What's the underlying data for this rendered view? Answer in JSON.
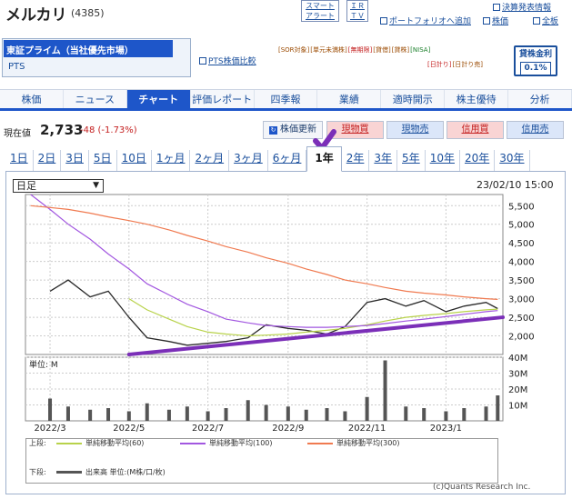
{
  "header": {
    "title": "メルカリ",
    "code": "(4385)",
    "smart_alert": [
      "スマート",
      "アラート"
    ],
    "ir_tv": [
      "ＩＲ",
      "ＴＶ"
    ],
    "settlement_link": "決算発表情報",
    "portfolio_link": "ポートフォリオへ追加",
    "stock_price_link": "株価",
    "full_board_link": "全板"
  },
  "market_select": {
    "selected": "東証プライム（当社優先市場）",
    "option": "PTS",
    "pts_compare": "PTS株価比較"
  },
  "tags": {
    "row1": [
      "[SOR対象]",
      "[単元未満株]",
      "[無期限]",
      "[貸借]",
      "[貸株]",
      "[NISA]"
    ],
    "row2": [
      "[日計り]",
      "[日計り売]"
    ]
  },
  "lending_rate": {
    "label": "貸株金利",
    "value": "0.1%"
  },
  "tabs": [
    "株価",
    "ニュース",
    "チャート",
    "評価レポート",
    "四季報",
    "業績",
    "適時開示",
    "株主優待",
    "分析"
  ],
  "active_tab": "チャート",
  "quote": {
    "label": "現在値",
    "price": "2,733",
    "change": "-48 (-1.73%)"
  },
  "buttons": {
    "update": "株価更新",
    "cash_buy": "現物買",
    "cash_sell": "現物売",
    "margin_buy": "信用買",
    "margin_sell": "信用売"
  },
  "periods": [
    "1日",
    "2日",
    "3日",
    "5日",
    "10日",
    "1ヶ月",
    "2ヶ月",
    "3ヶ月",
    "6ヶ月",
    "1年",
    "2年",
    "3年",
    "5年",
    "10年",
    "20年",
    "30年"
  ],
  "active_period": "1年",
  "chart_controls": {
    "interval": "日足",
    "timestamp": "23/02/10 15:00"
  },
  "legend": {
    "upper_label": "上段:",
    "ma60": "単純移動平均(60)",
    "ma100": "単純移動平均(100)",
    "ma300": "単純移動平均(300)",
    "lower_label": "下段:",
    "volume": "出来高 単位:(M株/口/枚)"
  },
  "copyright": "(c)Quants Research Inc.",
  "colors": {
    "price": "#2a2a2a",
    "ma60": "#b8d24a",
    "ma100": "#a257e0",
    "ma300": "#f07a50",
    "annotation": "#7b2fb8",
    "accent": "#1e56c9"
  },
  "chart_data": [
    {
      "type": "line",
      "x": [
        "2022-02-14",
        "2022-03-01",
        "2022-03-15",
        "2022-04-01",
        "2022-04-15",
        "2022-05-01",
        "2022-05-15",
        "2022-06-01",
        "2022-06-15",
        "2022-07-01",
        "2022-07-15",
        "2022-08-01",
        "2022-08-15",
        "2022-09-01",
        "2022-09-15",
        "2022-10-01",
        "2022-10-15",
        "2022-11-01",
        "2022-11-15",
        "2022-12-01",
        "2022-12-15",
        "2023-01-01",
        "2023-01-15",
        "2023-02-01",
        "2023-02-10"
      ],
      "series": [
        {
          "values": [
            null,
            3200,
            3500,
            3050,
            3200,
            2500,
            1950,
            1850,
            1750,
            1800,
            1850,
            1950,
            2300,
            2200,
            2150,
            2050,
            2250,
            2900,
            3000,
            2800,
            2950,
            2650,
            2800,
            2900,
            2733
          ]
        },
        {
          "values": [
            null,
            null,
            null,
            null,
            null,
            3000,
            2700,
            2450,
            2250,
            2100,
            2050,
            2000,
            2020,
            2050,
            2100,
            2150,
            2200,
            2300,
            2400,
            2500,
            2550,
            2600,
            2650,
            2700,
            2720
          ]
        },
        {
          "values": [
            5800,
            5400,
            5000,
            4600,
            4200,
            3800,
            3400,
            3100,
            2850,
            2650,
            2450,
            2350,
            2280,
            2250,
            2230,
            2230,
            2250,
            2280,
            2330,
            2400,
            2450,
            2520,
            2580,
            2650,
            2680
          ]
        },
        {
          "values": [
            5500,
            5450,
            5400,
            5300,
            5200,
            5100,
            5000,
            4850,
            4700,
            4550,
            4400,
            4250,
            4100,
            3950,
            3800,
            3650,
            3500,
            3400,
            3300,
            3200,
            3150,
            3100,
            3050,
            3000,
            2980
          ]
        }
      ],
      "ylim": [
        1500,
        5800
      ],
      "yticks": [
        2000,
        2500,
        3000,
        3500,
        4000,
        4500,
        5000,
        5500
      ],
      "xtick_labels": [
        "2022/3",
        "2022/5",
        "2022/7",
        "2022/9",
        "2022/11",
        "2023/1"
      ],
      "trendline": {
        "x": [
          "2022-05-01",
          "2023-02-14"
        ],
        "y": [
          1500,
          2500
        ]
      }
    },
    {
      "type": "bar",
      "ylabel": "単位: M",
      "yticks": [
        "10M",
        "20M",
        "30M",
        "40M"
      ],
      "ylim": [
        0,
        40
      ],
      "x": [
        "2022-03-01",
        "2022-03-15",
        "2022-04-01",
        "2022-04-15",
        "2022-05-01",
        "2022-05-15",
        "2022-06-01",
        "2022-06-15",
        "2022-07-01",
        "2022-07-15",
        "2022-08-01",
        "2022-08-15",
        "2022-09-01",
        "2022-09-15",
        "2022-10-01",
        "2022-10-15",
        "2022-11-01",
        "2022-11-15",
        "2022-12-01",
        "2022-12-15",
        "2023-01-01",
        "2023-01-15",
        "2023-02-01",
        "2023-02-10"
      ],
      "values": [
        14,
        9,
        7,
        8,
        6,
        11,
        7,
        9,
        6,
        8,
        13,
        10,
        9,
        7,
        8,
        6,
        15,
        38,
        9,
        8,
        6,
        8,
        9,
        16
      ]
    }
  ]
}
